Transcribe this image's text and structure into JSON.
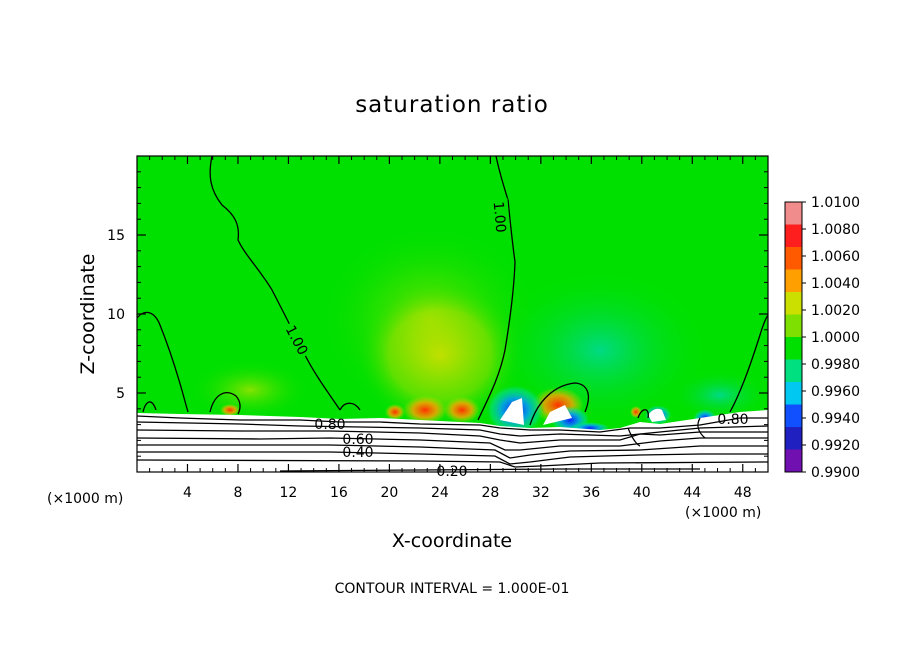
{
  "chart_data": {
    "type": "heatmap",
    "title": "saturation ratio",
    "xlabel": "X-coordinate",
    "ylabel": "Z-coordinate",
    "x_unit": "(×1000 m)",
    "x_unit_right": "(×1000 m)",
    "xlim": [
      0,
      50
    ],
    "ylim": [
      0,
      20
    ],
    "x_ticks": [
      4,
      8,
      12,
      16,
      20,
      24,
      28,
      32,
      36,
      40,
      44,
      48
    ],
    "y_ticks": [
      5,
      10,
      15
    ],
    "colorbar": {
      "levels": [
        "1.0100",
        "1.0080",
        "1.0060",
        "1.0040",
        "1.0020",
        "1.0000",
        "0.9980",
        "0.9960",
        "0.9940",
        "0.9920",
        "0.9900"
      ],
      "colors": [
        "#f08c8c",
        "#ff1e1e",
        "#ff5a00",
        "#ffa000",
        "#cce000",
        "#7ee000",
        "#00e000",
        "#00e080",
        "#00c8f0",
        "#1050ff",
        "#2020c0",
        "#7010b0"
      ]
    },
    "contour_labels": [
      {
        "text": "1.00",
        "x": 28.6,
        "z": 16.3,
        "rotation": 85
      },
      {
        "text": "1.00",
        "x": 12.8,
        "z": 8.5,
        "rotation": 62
      },
      {
        "text": "0.80",
        "x": 15.3,
        "z": 3.08
      },
      {
        "text": "0.80",
        "x": 46.4,
        "z": 3.4
      },
      {
        "text": "0.60",
        "x": 16.6,
        "z": 2.15
      },
      {
        "text": "0.40",
        "x": 16.5,
        "z": 1.35
      },
      {
        "text": "0.20",
        "x": 25.0,
        "z": 0.1
      }
    ],
    "footer": "CONTOUR INTERVAL = 1.000E-01"
  }
}
